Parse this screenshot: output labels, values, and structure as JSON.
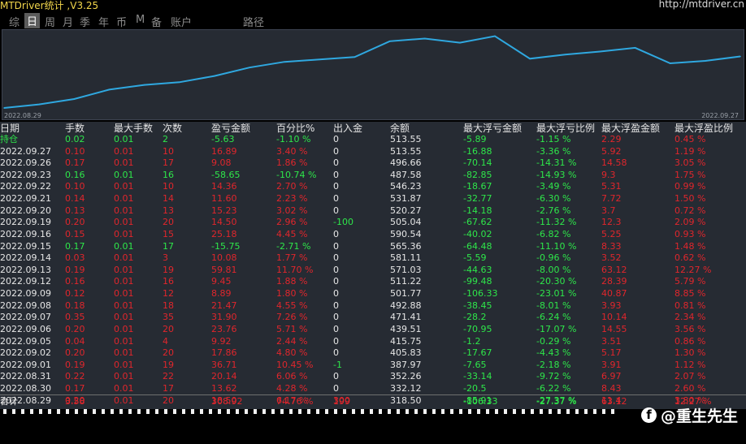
{
  "header": {
    "app_title": "MTDriver统计 ,V3.25",
    "url": "http://mtdriver.cn"
  },
  "tabs": [
    {
      "label": "综",
      "active": false
    },
    {
      "label": "日",
      "active": true
    },
    {
      "label": "周",
      "active": false
    },
    {
      "label": "月",
      "active": false
    },
    {
      "label": "季",
      "active": false
    },
    {
      "label": "年",
      "active": false
    },
    {
      "label": "币",
      "active": false
    },
    {
      "label": "M",
      "active": false
    },
    {
      "label": "备",
      "active": false
    },
    {
      "label": "账户",
      "active": false
    },
    {
      "label": "路径",
      "active": false
    }
  ],
  "chart_data": {
    "type": "line",
    "x_start_label": "2022.08.29",
    "x_end_label": "2022.09.27",
    "line_color": "#2fa8e0",
    "values": [
      318.5,
      332.12,
      352.26,
      387.97,
      405.83,
      415.75,
      439.51,
      471.41,
      492.88,
      501.77,
      511.22,
      571.03,
      581.11,
      565.36,
      590.54,
      505.04,
      520.27,
      531.87,
      546.23,
      487.58,
      496.66,
      513.55
    ]
  },
  "colors": {
    "green": "#2ee64a",
    "red": "#e0262c",
    "white": "#e6e6e6",
    "orange": "#f08a8a"
  },
  "table": {
    "headers": [
      "日期",
      "手数",
      "最大手数",
      "次数",
      "盈亏金额",
      "百分比%",
      "出入金",
      "余额",
      "最大浮亏金额",
      "最大浮亏比例",
      "最大浮盈金额",
      "最大浮盈比例"
    ],
    "holding": {
      "label": "持仓",
      "cells": [
        "0.02",
        "0.01",
        "2",
        "-5.63",
        "-1.10 %",
        "0",
        "513.55",
        "-5.89",
        "-1.15 %",
        "2.29",
        "0.45 %"
      ]
    },
    "rows": [
      {
        "date": "2022.09.27",
        "cells": [
          "0.10",
          "0.01",
          "10",
          "16.89",
          "3.40 %",
          "0",
          "513.55",
          "-16.88",
          "-3.36 %",
          "5.92",
          "1.19 %"
        ],
        "tone": "red"
      },
      {
        "date": "2022.09.26",
        "cells": [
          "0.17",
          "0.01",
          "17",
          "9.08",
          "1.86 %",
          "0",
          "496.66",
          "-70.14",
          "-14.31 %",
          "14.58",
          "3.05 %"
        ],
        "tone": "red"
      },
      {
        "date": "2022.09.23",
        "cells": [
          "0.16",
          "0.01",
          "16",
          "-58.65",
          "-10.74 %",
          "0",
          "487.58",
          "-82.85",
          "-14.93 %",
          "9.3",
          "1.75 %"
        ],
        "tone": "green"
      },
      {
        "date": "2022.09.22",
        "cells": [
          "0.10",
          "0.01",
          "10",
          "14.36",
          "2.70 %",
          "0",
          "546.23",
          "-18.67",
          "-3.49 %",
          "5.31",
          "0.99 %"
        ],
        "tone": "red"
      },
      {
        "date": "2022.09.21",
        "cells": [
          "0.14",
          "0.01",
          "14",
          "11.60",
          "2.23 %",
          "0",
          "531.87",
          "-32.77",
          "-6.30 %",
          "7.72",
          "1.50 %"
        ],
        "tone": "red"
      },
      {
        "date": "2022.09.20",
        "cells": [
          "0.13",
          "0.01",
          "13",
          "15.23",
          "3.02 %",
          "0",
          "520.27",
          "-14.18",
          "-2.76 %",
          "3.7",
          "0.72 %"
        ],
        "tone": "red"
      },
      {
        "date": "2022.09.19",
        "cells": [
          "0.20",
          "0.01",
          "20",
          "14.50",
          "2.96 %",
          "-100",
          "505.04",
          "-67.62",
          "-11.32 %",
          "12.3",
          "2.09 %"
        ],
        "tone": "red",
        "flow_green": true
      },
      {
        "date": "2022.09.16",
        "cells": [
          "0.15",
          "0.01",
          "15",
          "25.18",
          "4.45 %",
          "0",
          "590.54",
          "-40.02",
          "-6.82 %",
          "5.25",
          "0.93 %"
        ],
        "tone": "red"
      },
      {
        "date": "2022.09.15",
        "cells": [
          "0.17",
          "0.01",
          "17",
          "-15.75",
          "-2.71 %",
          "0",
          "565.36",
          "-64.48",
          "-11.10 %",
          "8.33",
          "1.48 %"
        ],
        "tone": "green"
      },
      {
        "date": "2022.09.14",
        "cells": [
          "0.03",
          "0.01",
          "3",
          "10.08",
          "1.77 %",
          "0",
          "581.11",
          "-5.59",
          "-0.96 %",
          "3.52",
          "0.62 %"
        ],
        "tone": "red"
      },
      {
        "date": "2022.09.13",
        "cells": [
          "0.19",
          "0.01",
          "19",
          "59.81",
          "11.70 %",
          "0",
          "571.03",
          "-44.63",
          "-8.00 %",
          "63.12",
          "12.27 %"
        ],
        "tone": "red"
      },
      {
        "date": "2022.09.12",
        "cells": [
          "0.16",
          "0.01",
          "16",
          "9.45",
          "1.88 %",
          "0",
          "511.22",
          "-99.48",
          "-20.30 %",
          "28.39",
          "5.79 %"
        ],
        "tone": "red"
      },
      {
        "date": "2022.09.09",
        "cells": [
          "0.12",
          "0.01",
          "12",
          "8.89",
          "1.80 %",
          "0",
          "501.77",
          "-106.33",
          "-23.01 %",
          "40.87",
          "8.85 %"
        ],
        "tone": "red"
      },
      {
        "date": "2022.09.08",
        "cells": [
          "0.18",
          "0.01",
          "18",
          "21.47",
          "4.55 %",
          "0",
          "492.88",
          "-38.45",
          "-8.01 %",
          "3.93",
          "0.81 %"
        ],
        "tone": "red"
      },
      {
        "date": "2022.09.07",
        "cells": [
          "0.35",
          "0.01",
          "35",
          "31.90",
          "7.26 %",
          "0",
          "471.41",
          "-28.2",
          "-6.24 %",
          "10.14",
          "2.34 %"
        ],
        "tone": "red"
      },
      {
        "date": "2022.09.06",
        "cells": [
          "0.20",
          "0.01",
          "20",
          "23.76",
          "5.71 %",
          "0",
          "439.51",
          "-70.95",
          "-17.07 %",
          "14.55",
          "3.56 %"
        ],
        "tone": "red"
      },
      {
        "date": "2022.09.05",
        "cells": [
          "0.04",
          "0.01",
          "4",
          "9.92",
          "2.44 %",
          "0",
          "415.75",
          "-1.2",
          "-0.29 %",
          "3.51",
          "0.86 %"
        ],
        "tone": "red"
      },
      {
        "date": "2022.09.02",
        "cells": [
          "0.20",
          "0.01",
          "20",
          "17.86",
          "4.80 %",
          "0",
          "405.83",
          "-17.67",
          "-4.43 %",
          "5.17",
          "1.30 %"
        ],
        "tone": "red"
      },
      {
        "date": "2022.09.01",
        "cells": [
          "0.19",
          "0.01",
          "19",
          "36.71",
          "10.45 %",
          "-1",
          "387.97",
          "-7.65",
          "-2.18 %",
          "3.91",
          "1.12 %"
        ],
        "tone": "red",
        "flow_green": true
      },
      {
        "date": "2022.08.31",
        "cells": [
          "0.22",
          "0.01",
          "22",
          "20.14",
          "6.06 %",
          "0",
          "352.26",
          "-33.14",
          "-9.72 %",
          "6.97",
          "2.07 %"
        ],
        "tone": "red"
      },
      {
        "date": "2022.08.30",
        "cells": [
          "0.17",
          "0.01",
          "17",
          "13.62",
          "4.28 %",
          "0",
          "332.12",
          "-20.5",
          "-6.22 %",
          "8.43",
          "2.60 %"
        ],
        "tone": "red"
      },
      {
        "date": "2022.08.29",
        "cells": [
          "0.20",
          "0.01",
          "20",
          "18.50",
          "6.17 %",
          "300",
          "318.50",
          "-85.91",
          "-27.37 %",
          "11.4",
          "3.80 %"
        ],
        "tone": "red",
        "flow_red": true
      }
    ],
    "totals": {
      "label": "合计",
      "lots": "3.58",
      "pnl": "308.92",
      "pct": "74.76 %",
      "flow": "199",
      "max_dd": "-106.33",
      "max_dd_pct": "-27.37 %",
      "max_fp": "63.12",
      "max_fp_pct": "12.27 %"
    }
  },
  "watermark": {
    "text": "@重生先生",
    "icon": "facebook-icon"
  }
}
